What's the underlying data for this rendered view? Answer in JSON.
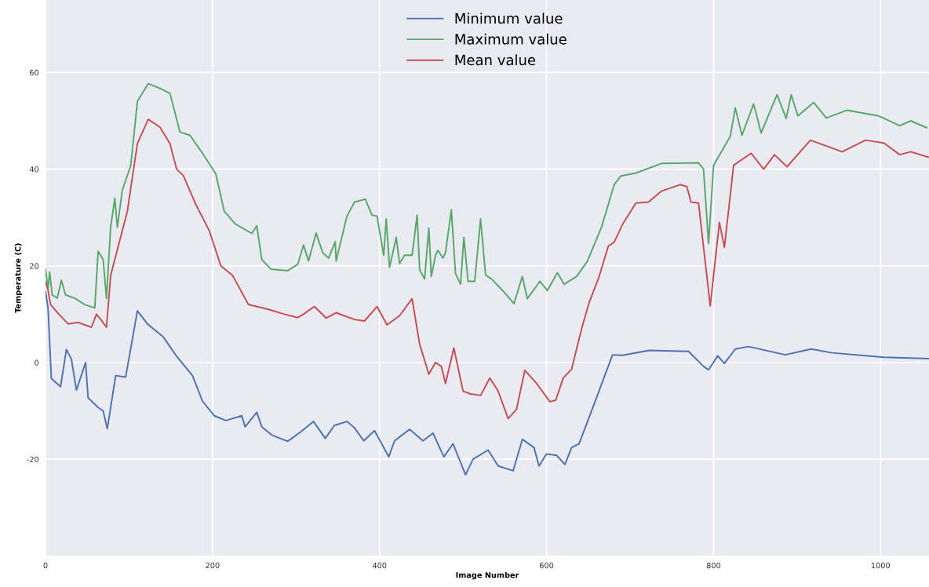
{
  "chart_data": {
    "type": "line",
    "xlabel": "Image Number",
    "ylabel": "Temperature (C)",
    "xlim": [
      0,
      1058
    ],
    "ylim": [
      -40,
      75
    ],
    "xticks": [
      0,
      200,
      400,
      600,
      800,
      1000
    ],
    "yticks": [
      -20,
      0,
      20,
      40,
      60
    ],
    "grid": true,
    "legend": "top",
    "line_style": "solid",
    "marker": "none",
    "series": [
      {
        "name": "Minimum value",
        "color": "#4c72b0",
        "x": [
          0,
          3,
          7,
          18,
          25,
          31,
          37,
          48,
          51,
          63,
          69,
          74,
          84,
          96,
          110,
          122,
          141,
          157,
          176,
          188,
          202,
          216,
          235,
          239,
          253,
          259,
          271,
          290,
          306,
          321,
          335,
          346,
          361,
          370,
          381,
          394,
          411,
          418,
          436,
          452,
          464,
          477,
          488,
          503,
          512,
          530,
          542,
          560,
          571,
          585,
          591,
          600,
          612,
          622,
          630,
          639,
          657,
          679,
          691,
          723,
          770,
          788,
          794,
          805,
          813,
          826,
          842,
          886,
          917,
          942,
          1004,
          1057
        ],
        "values": [
          14.7,
          11.3,
          -3.3,
          -5,
          2.7,
          0.7,
          -5.7,
          0,
          -7.3,
          -9.3,
          -10,
          -13.7,
          -2.7,
          -3,
          10.7,
          8,
          5.3,
          1.3,
          -2.7,
          -8,
          -11,
          -12,
          -11,
          -13.3,
          -10.3,
          -13.3,
          -15,
          -16.3,
          -14.3,
          -12.2,
          -15.7,
          -13,
          -12.2,
          -13.5,
          -16.2,
          -14.1,
          -19.5,
          -16.2,
          -13.8,
          -16.2,
          -14.6,
          -19.5,
          -16.8,
          -23.2,
          -20,
          -18.1,
          -21.4,
          -22.4,
          -15.9,
          -17.6,
          -21.4,
          -18.9,
          -19.2,
          -21.1,
          -17.6,
          -16.8,
          -8.6,
          1.6,
          1.5,
          2.5,
          2.3,
          -0.8,
          -1.5,
          1.4,
          -0.2,
          2.8,
          3.3,
          1.6,
          2.8,
          2,
          1.1,
          0.8
        ]
      },
      {
        "name": "Maximum value",
        "color": "#55a868",
        "x": [
          0,
          3,
          5,
          8,
          14,
          19,
          24,
          35,
          47,
          59,
          63,
          69,
          73,
          78,
          83,
          86,
          92,
          102,
          110,
          123,
          137,
          149,
          161,
          173,
          188,
          204,
          214,
          227,
          247,
          253,
          259,
          270,
          290,
          302,
          309,
          315,
          324,
          332,
          339,
          347,
          348,
          361,
          370,
          383,
          391,
          397,
          405,
          408,
          412,
          420,
          424,
          430,
          439,
          445,
          448,
          454,
          459,
          462,
          467,
          470,
          476,
          479,
          486,
          491,
          497,
          501,
          506,
          514,
          521,
          527,
          534,
          549,
          561,
          571,
          577,
          592,
          601,
          613,
          621,
          636,
          649,
          666,
          681,
          689,
          707,
          738,
          782,
          788,
          794,
          800,
          820,
          826,
          834,
          848,
          857,
          876,
          887,
          893,
          901,
          920,
          935,
          960,
          998,
          1023,
          1036,
          1055
        ],
        "values": [
          19.3,
          15.3,
          18.7,
          14,
          13.3,
          17,
          14,
          13.3,
          12,
          11.3,
          23,
          21.3,
          13.3,
          28,
          34,
          28,
          35.7,
          40.7,
          54,
          57.7,
          56.7,
          55.7,
          47.7,
          47,
          43.3,
          39,
          31.3,
          28.7,
          26.7,
          28.3,
          21.3,
          19.3,
          19,
          20.3,
          24.3,
          21,
          26.8,
          22.7,
          21.6,
          25,
          21,
          30.3,
          33.2,
          33.8,
          30.5,
          30.3,
          22.2,
          29.7,
          19.7,
          25.9,
          20.5,
          22.2,
          22.2,
          30.5,
          19.2,
          17.3,
          27.8,
          17.8,
          22.2,
          23.2,
          21.6,
          22.7,
          31.6,
          18.4,
          16.2,
          25.9,
          16.8,
          16.8,
          29.7,
          18.1,
          17.3,
          14.6,
          12.2,
          17.8,
          13.2,
          16.8,
          14.9,
          18.6,
          16.2,
          17.8,
          21,
          28.1,
          36.8,
          38.6,
          39.2,
          41.2,
          41.3,
          40,
          24.6,
          40.8,
          46.8,
          52.7,
          47,
          53.5,
          47.5,
          55.4,
          50.5,
          55.4,
          51,
          53.8,
          50.6,
          52.2,
          51,
          49,
          50,
          48.6
        ]
      },
      {
        "name": "Mean value",
        "color": "#c44e52",
        "x": [
          0,
          3,
          6,
          16,
          27,
          39,
          55,
          61,
          67,
          73,
          78,
          98,
          110,
          123,
          137,
          149,
          157,
          165,
          180,
          196,
          210,
          224,
          243,
          267,
          286,
          302,
          309,
          322,
          336,
          348,
          370,
          382,
          397,
          409,
          424,
          439,
          448,
          459,
          467,
          474,
          479,
          489,
          500,
          509,
          521,
          532,
          542,
          554,
          564,
          574,
          588,
          604,
          611,
          620,
          630,
          642,
          651,
          663,
          674,
          681,
          691,
          707,
          722,
          738,
          760,
          768,
          773,
          782,
          796,
          807,
          813,
          824,
          845,
          860,
          873,
          888,
          916,
          954,
          982,
          1004,
          1023,
          1036,
          1057
        ],
        "values": [
          16.7,
          15,
          12,
          10,
          8,
          8.3,
          7.3,
          10,
          8.7,
          7.3,
          18,
          31.3,
          45.3,
          50.3,
          48.7,
          45.3,
          40,
          38.7,
          32.7,
          27.3,
          20,
          18,
          12,
          11,
          10,
          9.3,
          10,
          11.6,
          9.2,
          10.3,
          8.9,
          8.6,
          11.6,
          7.8,
          9.7,
          13.2,
          3.8,
          -2.4,
          0,
          -0.8,
          -4.3,
          3,
          -5.9,
          -6.5,
          -6.8,
          -3.2,
          -5.9,
          -11.6,
          -9.7,
          -1.6,
          -4.3,
          -8.1,
          -7.8,
          -3.2,
          -1.4,
          7,
          12.4,
          17.8,
          24.1,
          24.9,
          28.6,
          33,
          33.2,
          35.5,
          36.8,
          36.4,
          33.2,
          33,
          11.7,
          29,
          23.8,
          40.8,
          43.3,
          40,
          43,
          40.5,
          46,
          43.6,
          46,
          45.4,
          43,
          43.6,
          42.5
        ]
      }
    ]
  }
}
